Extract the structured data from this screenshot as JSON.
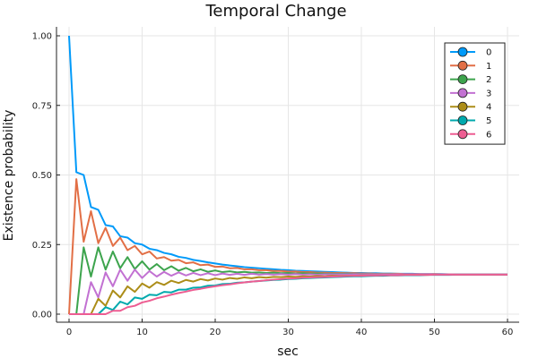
{
  "chart_data": {
    "type": "line",
    "title": "Temporal Change",
    "xlabel": "sec",
    "ylabel": "Existence probability",
    "xlim": [
      0,
      60
    ],
    "ylim": [
      0,
      1
    ],
    "x_ticks": [
      0,
      10,
      20,
      30,
      40,
      50,
      60
    ],
    "y_ticks": [
      0.0,
      0.25,
      0.5,
      0.75,
      1.0
    ],
    "x_tick_labels": [
      "0",
      "10",
      "20",
      "30",
      "40",
      "50",
      "60"
    ],
    "y_tick_labels": [
      "0.00",
      "0.25",
      "0.50",
      "0.75",
      "1.00"
    ],
    "grid": true,
    "legend_position": "top-right",
    "marker": "circle",
    "x": [
      0,
      1,
      2,
      3,
      4,
      5,
      6,
      7,
      8,
      9,
      10,
      11,
      12,
      13,
      14,
      15,
      16,
      17,
      18,
      19,
      20,
      21,
      22,
      23,
      24,
      25,
      26,
      27,
      28,
      29,
      30,
      31,
      32,
      33,
      34,
      35,
      36,
      37,
      38,
      39,
      40,
      41,
      42,
      43,
      44,
      45,
      46,
      47,
      48,
      49,
      50,
      51,
      52,
      53,
      54,
      55,
      56,
      57,
      58,
      59,
      60
    ],
    "series": [
      {
        "name": "0",
        "color": "#009af9",
        "values": [
          1.0,
          0.51,
          0.5,
          0.385,
          0.375,
          0.32,
          0.315,
          0.28,
          0.275,
          0.255,
          0.25,
          0.235,
          0.23,
          0.22,
          0.215,
          0.206,
          0.202,
          0.195,
          0.191,
          0.186,
          0.182,
          0.178,
          0.175,
          0.172,
          0.169,
          0.167,
          0.165,
          0.163,
          0.161,
          0.159,
          0.158,
          0.156,
          0.155,
          0.154,
          0.153,
          0.152,
          0.151,
          0.15,
          0.149,
          0.148,
          0.148,
          0.147,
          0.147,
          0.146,
          0.146,
          0.145,
          0.145,
          0.145,
          0.144,
          0.144,
          0.144,
          0.144,
          0.143,
          0.143,
          0.143,
          0.143,
          0.143,
          0.143,
          0.143,
          0.143,
          0.143
        ]
      },
      {
        "name": "1",
        "color": "#e26f46",
        "values": [
          0.0,
          0.485,
          0.26,
          0.37,
          0.255,
          0.31,
          0.245,
          0.275,
          0.23,
          0.245,
          0.215,
          0.225,
          0.2,
          0.205,
          0.192,
          0.195,
          0.183,
          0.186,
          0.176,
          0.178,
          0.17,
          0.171,
          0.165,
          0.166,
          0.161,
          0.161,
          0.158,
          0.158,
          0.155,
          0.155,
          0.153,
          0.153,
          0.151,
          0.151,
          0.149,
          0.149,
          0.148,
          0.148,
          0.147,
          0.147,
          0.146,
          0.146,
          0.145,
          0.145,
          0.145,
          0.145,
          0.144,
          0.144,
          0.144,
          0.144,
          0.144,
          0.143,
          0.143,
          0.143,
          0.143,
          0.143,
          0.143,
          0.143,
          0.143,
          0.143,
          0.143
        ]
      },
      {
        "name": "2",
        "color": "#3da44d",
        "values": [
          0.0,
          0.0,
          0.24,
          0.135,
          0.24,
          0.16,
          0.225,
          0.165,
          0.205,
          0.162,
          0.19,
          0.16,
          0.18,
          0.158,
          0.172,
          0.156,
          0.166,
          0.154,
          0.161,
          0.152,
          0.157,
          0.151,
          0.154,
          0.15,
          0.152,
          0.149,
          0.15,
          0.148,
          0.149,
          0.147,
          0.148,
          0.146,
          0.147,
          0.146,
          0.146,
          0.145,
          0.145,
          0.145,
          0.145,
          0.144,
          0.144,
          0.144,
          0.144,
          0.144,
          0.144,
          0.143,
          0.143,
          0.143,
          0.143,
          0.143,
          0.143,
          0.143,
          0.143,
          0.143,
          0.143,
          0.143,
          0.143,
          0.143,
          0.143,
          0.143,
          0.143
        ]
      },
      {
        "name": "3",
        "color": "#c271d2",
        "values": [
          0.0,
          0.0,
          0.0,
          0.115,
          0.06,
          0.15,
          0.1,
          0.16,
          0.12,
          0.16,
          0.13,
          0.155,
          0.135,
          0.152,
          0.138,
          0.15,
          0.139,
          0.148,
          0.14,
          0.147,
          0.14,
          0.146,
          0.141,
          0.145,
          0.141,
          0.145,
          0.142,
          0.144,
          0.142,
          0.144,
          0.142,
          0.144,
          0.142,
          0.143,
          0.142,
          0.143,
          0.143,
          0.143,
          0.143,
          0.143,
          0.143,
          0.143,
          0.143,
          0.143,
          0.143,
          0.143,
          0.143,
          0.143,
          0.143,
          0.143,
          0.143,
          0.143,
          0.143,
          0.143,
          0.143,
          0.143,
          0.143,
          0.143,
          0.143,
          0.143,
          0.143
        ]
      },
      {
        "name": "4",
        "color": "#ac8d18",
        "values": [
          0.0,
          0.0,
          0.0,
          0.0,
          0.055,
          0.03,
          0.085,
          0.06,
          0.1,
          0.08,
          0.11,
          0.095,
          0.115,
          0.105,
          0.12,
          0.112,
          0.123,
          0.117,
          0.126,
          0.121,
          0.128,
          0.124,
          0.13,
          0.127,
          0.132,
          0.129,
          0.133,
          0.131,
          0.134,
          0.133,
          0.135,
          0.134,
          0.136,
          0.135,
          0.137,
          0.136,
          0.138,
          0.137,
          0.138,
          0.138,
          0.139,
          0.139,
          0.139,
          0.14,
          0.14,
          0.14,
          0.141,
          0.141,
          0.141,
          0.141,
          0.142,
          0.142,
          0.142,
          0.142,
          0.142,
          0.142,
          0.142,
          0.142,
          0.142,
          0.142,
          0.142
        ]
      },
      {
        "name": "5",
        "color": "#00a9ad",
        "values": [
          0.0,
          0.0,
          0.0,
          0.0,
          0.0,
          0.025,
          0.015,
          0.045,
          0.035,
          0.06,
          0.055,
          0.07,
          0.068,
          0.08,
          0.078,
          0.088,
          0.088,
          0.095,
          0.096,
          0.102,
          0.103,
          0.108,
          0.109,
          0.113,
          0.114,
          0.117,
          0.119,
          0.121,
          0.123,
          0.124,
          0.126,
          0.127,
          0.129,
          0.13,
          0.131,
          0.132,
          0.133,
          0.134,
          0.135,
          0.136,
          0.136,
          0.137,
          0.138,
          0.138,
          0.139,
          0.139,
          0.14,
          0.14,
          0.14,
          0.141,
          0.141,
          0.141,
          0.141,
          0.142,
          0.142,
          0.142,
          0.142,
          0.142,
          0.142,
          0.142,
          0.142
        ]
      },
      {
        "name": "6",
        "color": "#ed5d92",
        "values": [
          0.0,
          0.0,
          0.0,
          0.0,
          0.0,
          0.0,
          0.012,
          0.012,
          0.025,
          0.03,
          0.042,
          0.048,
          0.057,
          0.063,
          0.07,
          0.076,
          0.081,
          0.087,
          0.091,
          0.096,
          0.1,
          0.104,
          0.107,
          0.111,
          0.114,
          0.117,
          0.119,
          0.122,
          0.124,
          0.126,
          0.128,
          0.129,
          0.131,
          0.132,
          0.133,
          0.134,
          0.135,
          0.136,
          0.137,
          0.138,
          0.138,
          0.139,
          0.139,
          0.14,
          0.14,
          0.14,
          0.141,
          0.141,
          0.141,
          0.141,
          0.142,
          0.142,
          0.142,
          0.142,
          0.142,
          0.142,
          0.142,
          0.142,
          0.142,
          0.142,
          0.142
        ]
      }
    ]
  }
}
